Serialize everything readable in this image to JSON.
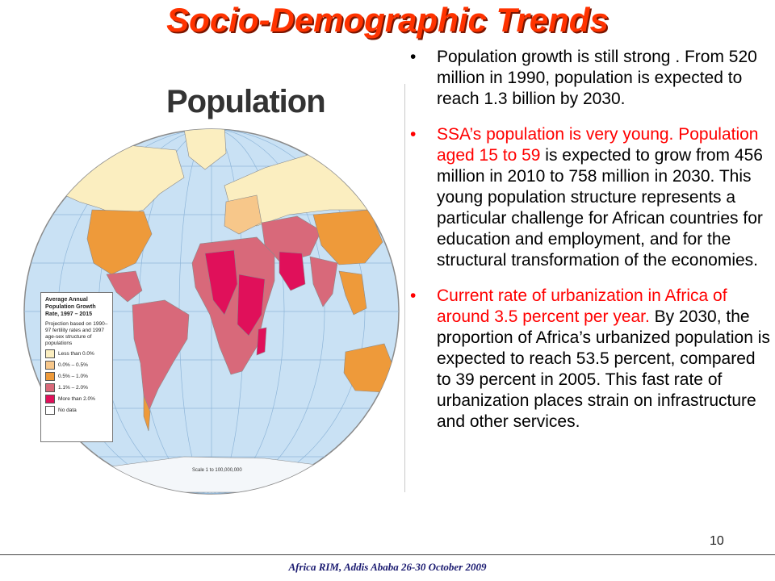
{
  "slide": {
    "title": "Socio-Demographic Trends",
    "page_number": "10",
    "footer": "Africa RIM,  Addis Ababa 26-30 October 2009"
  },
  "map": {
    "heading": "Population",
    "legend": {
      "title": "Average Annual Population Growth Rate, 1997 – 2015",
      "note": "Projection based on 1990–97 fertility rates and 1997 age-sex structure of populations",
      "items": [
        {
          "label": "Less than 0.0%",
          "color": "#fbeec0"
        },
        {
          "label": "0.0% – 0.5%",
          "color": "#f7c78a"
        },
        {
          "label": "0.5% – 1.0%",
          "color": "#ee9a3a"
        },
        {
          "label": "1.1% – 2.0%",
          "color": "#d8697a"
        },
        {
          "label": "More than 2.0%",
          "color": "#e0105a"
        },
        {
          "label": "No data",
          "color": "#ffffff"
        }
      ]
    },
    "scale": "Scale 1 to 100,000,000",
    "colors": {
      "ocean": "#c9e1f4",
      "grid": "#8fb6d9",
      "outline": "#8a8a8a"
    }
  },
  "bullets": [
    {
      "parts": [
        {
          "text": "Population growth is still strong . From 520 million in 1990, population is expected to reach 1.3 billion by 2030.",
          "color": "#000000"
        }
      ]
    },
    {
      "parts": [
        {
          "text": "SSA’s population is very young. Population aged 15 to 59",
          "color": "#ff0000"
        },
        {
          "text": " is expected to grow from 456 million in 2010 to 758 million in 2030. This young population structure represents a particular challenge for African countries for education and employment, and for the structural transformation of the economies.",
          "color": "#000000"
        }
      ]
    },
    {
      "parts": [
        {
          "text": "Current rate of urbanization in Africa of around 3.5 percent per year.",
          "color": "#ff0000"
        },
        {
          "text": " By 2030, the proportion of Africa’s urbanized population is expected to reach 53.5 percent, compared to 39 percent in 2005. This fast rate of urbanization places strain on infrastructure and other services.",
          "color": "#000000"
        }
      ]
    }
  ]
}
